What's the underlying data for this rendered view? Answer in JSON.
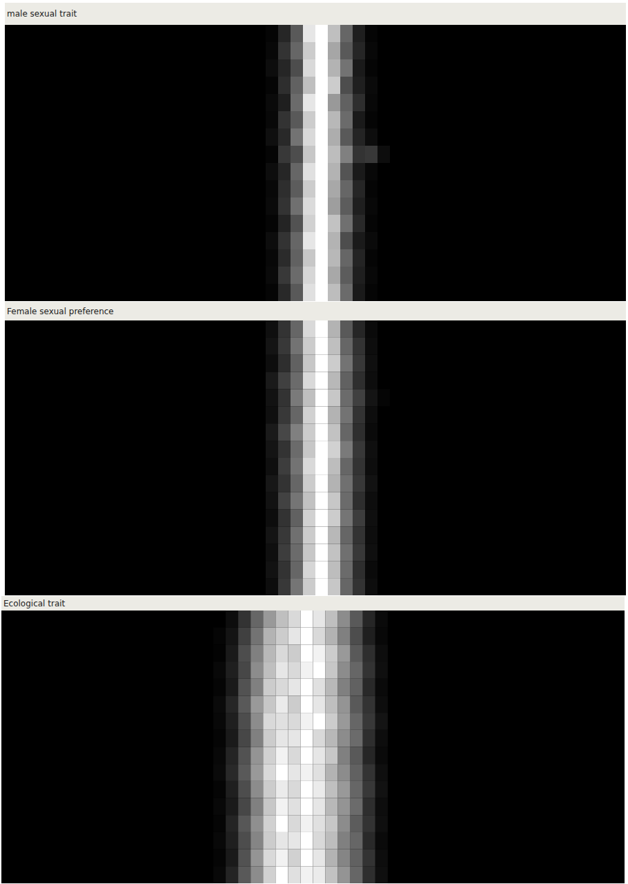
{
  "chart_data": [
    {
      "type": "heatmap",
      "title": "male sexual trait",
      "tick_labels": false,
      "xlim": [
        0,
        50
      ],
      "ylim": [
        0,
        16
      ],
      "x": [
        21,
        22,
        23,
        24,
        25,
        26,
        27,
        28,
        29,
        30
      ],
      "cells": [
        [
          0.02,
          0.15,
          0.35,
          0.9,
          1,
          0.75,
          0.4,
          0.12,
          0.02,
          0
        ],
        [
          0.03,
          0.2,
          0.4,
          0.8,
          1,
          0.65,
          0.35,
          0.15,
          0.03,
          0
        ],
        [
          0.05,
          0.15,
          0.3,
          0.85,
          1,
          0.7,
          0.45,
          0.1,
          0.02,
          0
        ],
        [
          0.02,
          0.18,
          0.38,
          0.75,
          1,
          0.8,
          0.3,
          0.12,
          0.04,
          0
        ],
        [
          0.04,
          0.12,
          0.42,
          0.9,
          1,
          0.6,
          0.38,
          0.18,
          0.03,
          0
        ],
        [
          0.03,
          0.2,
          0.35,
          0.8,
          1,
          0.72,
          0.42,
          0.1,
          0.02,
          0
        ],
        [
          0.06,
          0.16,
          0.45,
          0.85,
          1,
          0.68,
          0.35,
          0.14,
          0.05,
          0
        ],
        [
          0.02,
          0.22,
          0.3,
          0.78,
          1,
          0.74,
          0.5,
          0.2,
          0.22,
          0.05
        ],
        [
          0.05,
          0.15,
          0.4,
          0.88,
          1,
          0.7,
          0.33,
          0.1,
          0.03,
          0
        ],
        [
          0.03,
          0.18,
          0.36,
          0.8,
          1,
          0.66,
          0.4,
          0.15,
          0.02,
          0
        ],
        [
          0.04,
          0.2,
          0.44,
          0.86,
          1,
          0.62,
          0.36,
          0.12,
          0.03,
          0
        ],
        [
          0.02,
          0.14,
          0.32,
          0.82,
          1,
          0.76,
          0.44,
          0.16,
          0.02,
          0
        ],
        [
          0.05,
          0.2,
          0.4,
          0.9,
          1,
          0.7,
          0.3,
          0.1,
          0.04,
          0
        ],
        [
          0.03,
          0.17,
          0.38,
          0.78,
          1,
          0.72,
          0.4,
          0.14,
          0.02,
          0
        ],
        [
          0.04,
          0.22,
          0.42,
          0.84,
          1,
          0.66,
          0.36,
          0.12,
          0.03,
          0
        ],
        [
          0.02,
          0.16,
          0.35,
          0.88,
          1,
          0.74,
          0.42,
          0.1,
          0.02,
          0
        ]
      ]
    },
    {
      "type": "heatmap",
      "title": "Female sexual preference",
      "tick_labels": false,
      "xlim": [
        0,
        50
      ],
      "ylim": [
        0,
        16
      ],
      "x": [
        21,
        22,
        23,
        24,
        25,
        26,
        27,
        28,
        29,
        30
      ],
      "cells": [
        [
          0.06,
          0.2,
          0.4,
          0.85,
          1,
          0.7,
          0.35,
          0.15,
          0.04,
          0
        ],
        [
          0.08,
          0.22,
          0.45,
          0.8,
          1,
          0.75,
          0.4,
          0.2,
          0.05,
          0
        ],
        [
          0.05,
          0.18,
          0.38,
          0.78,
          1,
          0.8,
          0.45,
          0.22,
          0.06,
          0
        ],
        [
          0.1,
          0.25,
          0.42,
          0.85,
          1,
          0.72,
          0.38,
          0.18,
          0.05,
          0
        ],
        [
          0.07,
          0.2,
          0.48,
          0.75,
          1,
          0.78,
          0.42,
          0.25,
          0.08,
          0.02
        ],
        [
          0.06,
          0.22,
          0.4,
          0.82,
          1,
          0.7,
          0.45,
          0.2,
          0.05,
          0
        ],
        [
          0.1,
          0.28,
          0.5,
          0.8,
          1,
          0.76,
          0.4,
          0.18,
          0.04,
          0
        ],
        [
          0.08,
          0.2,
          0.42,
          0.78,
          1,
          0.82,
          0.48,
          0.22,
          0.06,
          0
        ],
        [
          0.06,
          0.24,
          0.45,
          0.85,
          1,
          0.74,
          0.4,
          0.2,
          0.05,
          0
        ],
        [
          0.09,
          0.2,
          0.4,
          0.8,
          1,
          0.7,
          0.44,
          0.22,
          0.07,
          0
        ],
        [
          0.07,
          0.26,
          0.46,
          0.76,
          1,
          0.78,
          0.42,
          0.18,
          0.05,
          0
        ],
        [
          0.05,
          0.2,
          0.38,
          0.82,
          1,
          0.8,
          0.46,
          0.24,
          0.06,
          0
        ],
        [
          0.08,
          0.22,
          0.44,
          0.8,
          1,
          0.72,
          0.4,
          0.2,
          0.05,
          0
        ],
        [
          0.06,
          0.24,
          0.42,
          0.78,
          1,
          0.76,
          0.44,
          0.22,
          0.06,
          0
        ],
        [
          0.07,
          0.2,
          0.4,
          0.84,
          1,
          0.74,
          0.42,
          0.18,
          0.04,
          0
        ],
        [
          0.05,
          0.22,
          0.46,
          0.8,
          1,
          0.78,
          0.4,
          0.2,
          0.05,
          0
        ]
      ]
    },
    {
      "type": "heatmap",
      "title": "Ecological trait",
      "tick_labels": false,
      "xlim": [
        0,
        50
      ],
      "ylim": [
        0,
        16
      ],
      "x": [
        17,
        18,
        19,
        20,
        21,
        22,
        23,
        24,
        25,
        26,
        27,
        28,
        29,
        30
      ],
      "cells": [
        [
          0,
          0.05,
          0.2,
          0.4,
          0.6,
          0.75,
          0.85,
          1,
          0.9,
          0.75,
          0.55,
          0.35,
          0.15,
          0.04
        ],
        [
          0.02,
          0.08,
          0.25,
          0.45,
          0.7,
          0.8,
          0.9,
          1,
          0.85,
          0.7,
          0.5,
          0.3,
          0.12,
          0.03
        ],
        [
          0.01,
          0.1,
          0.3,
          0.5,
          0.72,
          0.85,
          0.8,
          1,
          0.95,
          0.8,
          0.6,
          0.35,
          0.18,
          0.05
        ],
        [
          0.03,
          0.12,
          0.28,
          0.55,
          0.75,
          0.9,
          0.85,
          0.95,
          1,
          0.78,
          0.55,
          0.4,
          0.2,
          0.06
        ],
        [
          0.02,
          0.1,
          0.32,
          0.5,
          0.8,
          0.85,
          0.9,
          1,
          0.88,
          0.72,
          0.5,
          0.38,
          0.16,
          0.04
        ],
        [
          0.04,
          0.15,
          0.35,
          0.6,
          0.78,
          0.92,
          0.8,
          1,
          0.9,
          0.75,
          0.58,
          0.35,
          0.2,
          0.05
        ],
        [
          0.03,
          0.12,
          0.3,
          0.55,
          0.85,
          0.88,
          0.85,
          0.95,
          1,
          0.8,
          0.6,
          0.4,
          0.22,
          0.08
        ],
        [
          0.02,
          0.1,
          0.28,
          0.5,
          0.8,
          0.9,
          0.9,
          1,
          0.85,
          0.72,
          0.55,
          0.42,
          0.18,
          0.05
        ],
        [
          0.03,
          0.14,
          0.32,
          0.58,
          0.82,
          0.95,
          0.85,
          1,
          0.9,
          0.78,
          0.5,
          0.35,
          0.15,
          0.04
        ],
        [
          0.04,
          0.16,
          0.35,
          0.6,
          0.85,
          1,
          0.9,
          0.95,
          0.88,
          0.7,
          0.55,
          0.38,
          0.2,
          0.06
        ],
        [
          0.02,
          0.12,
          0.3,
          0.55,
          0.8,
          0.92,
          0.85,
          1,
          0.92,
          0.75,
          0.6,
          0.4,
          0.22,
          0.07
        ],
        [
          0.03,
          0.1,
          0.28,
          0.5,
          0.78,
          0.95,
          0.88,
          1,
          0.9,
          0.72,
          0.58,
          0.42,
          0.18,
          0.05
        ],
        [
          0.02,
          0.14,
          0.34,
          0.56,
          0.82,
          1,
          0.85,
          0.95,
          0.88,
          0.78,
          0.55,
          0.36,
          0.2,
          0.06
        ],
        [
          0.03,
          0.12,
          0.3,
          0.52,
          0.8,
          0.9,
          0.9,
          1,
          0.85,
          0.74,
          0.5,
          0.4,
          0.16,
          0.04
        ],
        [
          0.02,
          0.1,
          0.32,
          0.58,
          0.85,
          0.95,
          0.82,
          1,
          0.9,
          0.7,
          0.52,
          0.38,
          0.2,
          0.05
        ],
        [
          0.03,
          0.14,
          0.35,
          0.55,
          0.82,
          1,
          0.88,
          0.95,
          0.92,
          0.76,
          0.58,
          0.4,
          0.18,
          0.06
        ]
      ]
    }
  ]
}
